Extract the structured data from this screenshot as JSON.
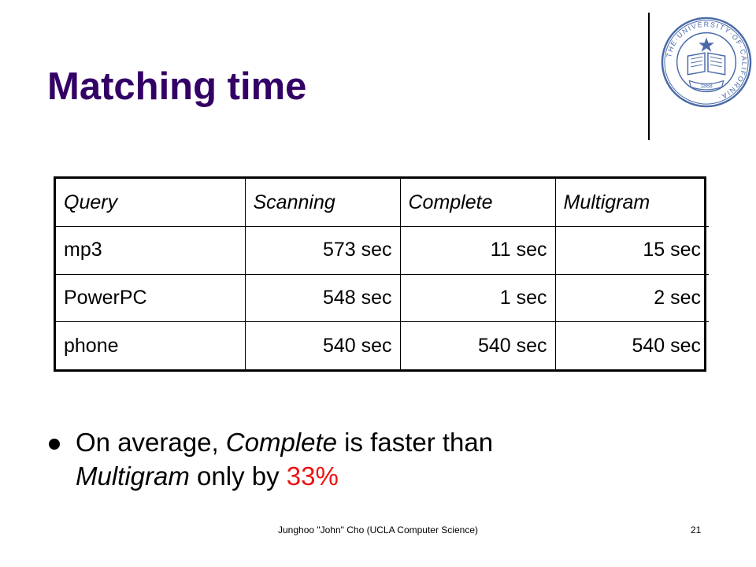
{
  "slide": {
    "title": "Matching time",
    "logo": "university-of-california-seal",
    "logo_text": "THE UNIVERSITY OF CALIFORNIA 1868",
    "accent_color": "#330066",
    "highlight_color": "#ee1111"
  },
  "table": {
    "headers": [
      "Query",
      "Scanning",
      "Complete",
      "Multigram"
    ],
    "rows": [
      [
        "mp3",
        "573 sec",
        "11 sec",
        "15 sec"
      ],
      [
        "PowerPC",
        "548 sec",
        "1 sec",
        "2 sec"
      ],
      [
        "phone",
        "540 sec",
        "540 sec",
        "540 sec"
      ]
    ]
  },
  "bullet": {
    "part1": "On average, ",
    "part2": "Complete",
    "part3": " is faster than ",
    "part4": "Multigram",
    "part5": " only by ",
    "part6": "33%"
  },
  "footer": {
    "text": "Junghoo \"John\" Cho (UCLA Computer Science)",
    "page": "21"
  }
}
